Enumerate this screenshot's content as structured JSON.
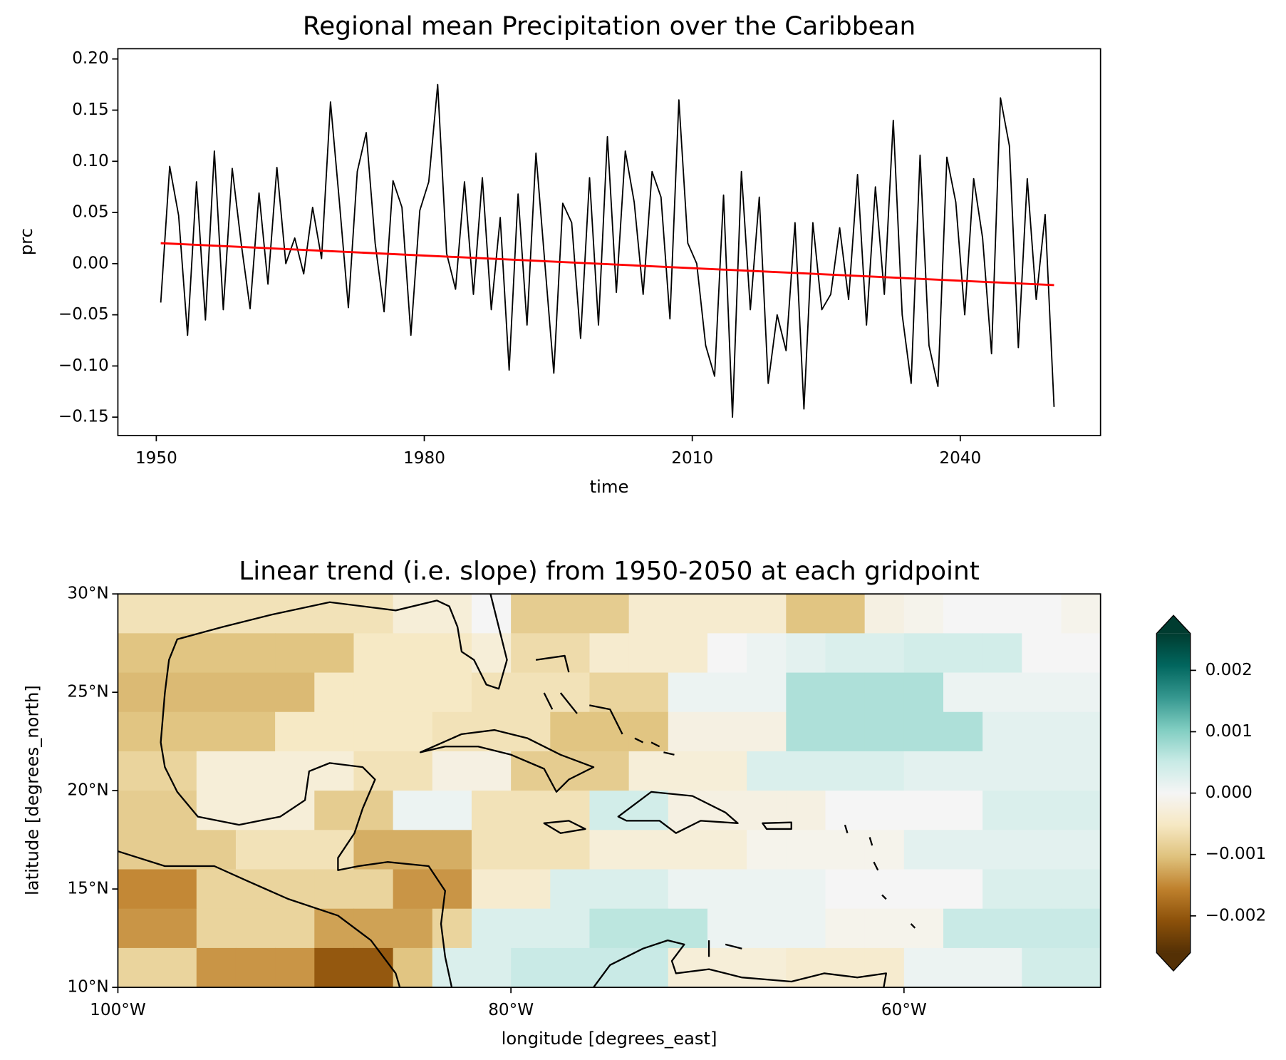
{
  "chart_data": [
    {
      "type": "line",
      "title": "Regional mean Precipitation over the Caribbean",
      "xlabel": "time",
      "ylabel": "prc",
      "xlim": [
        1945.7,
        2055.7
      ],
      "ylim": [
        -0.168,
        0.21
      ],
      "xticks": [
        1950,
        1980,
        2010,
        2040
      ],
      "yticks": [
        {
          "value": -0.15,
          "label": "−0.15"
        },
        {
          "value": -0.1,
          "label": "−0.10"
        },
        {
          "value": -0.05,
          "label": "−0.05"
        },
        {
          "value": 0,
          "label": "0.00"
        },
        {
          "value": 0.05,
          "label": "0.05"
        },
        {
          "value": 0.1,
          "label": "0.10"
        },
        {
          "value": 0.15,
          "label": "0.15"
        },
        {
          "value": 0.2,
          "label": "0.20"
        }
      ],
      "x": [
        1950.5,
        1951.5,
        1952.5,
        1953.5,
        1954.5,
        1955.5,
        1956.5,
        1957.5,
        1958.5,
        1959.5,
        1960.5,
        1961.5,
        1962.5,
        1963.5,
        1964.5,
        1965.5,
        1966.5,
        1967.5,
        1968.5,
        1969.5,
        1970.5,
        1971.5,
        1972.5,
        1973.5,
        1974.5,
        1975.5,
        1976.5,
        1977.5,
        1978.5,
        1979.5,
        1980.5,
        1981.5,
        1982.5,
        1983.5,
        1984.5,
        1985.5,
        1986.5,
        1987.5,
        1988.5,
        1989.5,
        1990.5,
        1991.5,
        1992.5,
        1993.5,
        1994.5,
        1995.5,
        1996.5,
        1997.5,
        1998.5,
        1999.5,
        2000.5,
        2001.5,
        2002.5,
        2003.5,
        2004.5,
        2005.5,
        2006.5,
        2007.5,
        2008.5,
        2009.5,
        2010.5,
        2011.5,
        2012.5,
        2013.5,
        2014.5,
        2015.5,
        2016.5,
        2017.5,
        2018.5,
        2019.5,
        2020.5,
        2021.5,
        2022.5,
        2023.5,
        2024.5,
        2025.5,
        2026.5,
        2027.5,
        2028.5,
        2029.5,
        2030.5,
        2031.5,
        2032.5,
        2033.5,
        2034.5,
        2035.5,
        2036.5,
        2037.5,
        2038.5,
        2039.5,
        2040.5,
        2041.5,
        2042.5,
        2043.5,
        2044.5,
        2045.5,
        2046.5,
        2047.5,
        2048.5,
        2049.5,
        2050.5
      ],
      "series": [
        {
          "color": "#000000",
          "values": [
            -0.038,
            0.095,
            0.047,
            -0.07,
            0.08,
            -0.055,
            0.11,
            -0.045,
            0.093,
            0.02,
            -0.044,
            0.069,
            -0.02,
            0.094,
            0.0,
            0.025,
            -0.01,
            0.055,
            0.005,
            0.158,
            0.06,
            -0.043,
            0.09,
            0.128,
            0.02,
            -0.047,
            0.081,
            0.055,
            -0.07,
            0.052,
            0.08,
            0.175,
            0.01,
            -0.025,
            0.08,
            -0.03,
            0.084,
            -0.045,
            0.045,
            -0.104,
            0.068,
            -0.06,
            0.108,
            0.0,
            -0.107,
            0.059,
            0.04,
            -0.073,
            0.084,
            -0.06,
            0.124,
            -0.028,
            0.11,
            0.06,
            -0.03,
            0.09,
            0.065,
            -0.054,
            0.16,
            0.02,
            0.0,
            -0.08,
            -0.11,
            0.067,
            -0.15,
            0.09,
            -0.045,
            0.065,
            -0.117,
            -0.05,
            -0.085,
            0.04,
            -0.142,
            0.04,
            -0.045,
            -0.03,
            0.035,
            -0.035,
            0.087,
            -0.06,
            0.075,
            -0.03,
            0.14,
            -0.05,
            -0.117,
            0.106,
            -0.08,
            -0.12,
            0.104,
            0.06,
            -0.05,
            0.083,
            0.025,
            -0.088,
            0.162,
            0.115,
            -0.082,
            0.083,
            -0.035,
            0.048,
            -0.14
          ]
        },
        {
          "color": "#ff0000",
          "x": [
            1950.5,
            2050.5
          ],
          "values": [
            0.02,
            -0.021
          ]
        }
      ]
    },
    {
      "type": "heatmap",
      "title": "Linear trend (i.e. slope) from 1950-2050 at each gridpoint",
      "xlabel": "longitude [degrees_east]",
      "ylabel": "latitude [degrees_north]",
      "cmap": "BrBG",
      "xlim": [
        -100,
        -50
      ],
      "ylim": [
        10,
        30
      ],
      "xticks": [
        {
          "value": -100,
          "label": "100°W"
        },
        {
          "value": -80,
          "label": "80°W"
        },
        {
          "value": -60,
          "label": "60°W"
        }
      ],
      "yticks": [
        {
          "value": 10,
          "label": "10°N"
        },
        {
          "value": 15,
          "label": "15°N"
        },
        {
          "value": 20,
          "label": "20°N"
        },
        {
          "value": 25,
          "label": "25°N"
        },
        {
          "value": 30,
          "label": "30°N"
        }
      ],
      "lon": [
        -99,
        -97,
        -95,
        -93,
        -91,
        -89,
        -87,
        -85,
        -83,
        -81,
        -79,
        -77,
        -75,
        -73,
        -71,
        -69,
        -67,
        -65,
        -63,
        -61,
        -59,
        -57,
        -55,
        -53,
        -51
      ],
      "lat": [
        29,
        27,
        25,
        23,
        21,
        19,
        17,
        15,
        13,
        11
      ],
      "z": [
        [
          -0.0006,
          -0.0006,
          -0.0006,
          -0.0006,
          -0.0006,
          -0.0006,
          -0.0006,
          -0.0003,
          -0.0003,
          0,
          -0.0009,
          -0.0009,
          -0.0009,
          -0.0004,
          -0.0004,
          -0.0004,
          -0.0004,
          -0.001,
          -0.001,
          -0.0002,
          -0.0001,
          0,
          0,
          0,
          -0.0001
        ],
        [
          -0.001,
          -0.001,
          -0.001,
          -0.001,
          -0.001,
          -0.001,
          -0.0005,
          -0.0005,
          -0.0005,
          -0.0003,
          -0.0007,
          -0.0007,
          -0.0004,
          -0.0004,
          -0.0004,
          0,
          0.0001,
          0.0002,
          0.0003,
          0.0003,
          0.0004,
          0.0004,
          0.0004,
          0,
          0
        ],
        [
          -0.0011,
          -0.0011,
          -0.0011,
          -0.0011,
          -0.0011,
          -0.0005,
          -0.0005,
          -0.0005,
          -0.0005,
          -0.0006,
          -0.0006,
          -0.0006,
          -0.0008,
          -0.0008,
          0.0001,
          0.0001,
          0.0001,
          0.0007,
          0.0007,
          0.0007,
          0.0007,
          0.0001,
          0.0001,
          0.0001,
          0.0001
        ],
        [
          -0.001,
          -0.001,
          -0.001,
          -0.001,
          -0.0005,
          -0.0005,
          -0.0005,
          -0.0005,
          -0.0006,
          -0.0006,
          -0.0006,
          -0.001,
          -0.001,
          -0.001,
          -0.0002,
          -0.0002,
          -0.0002,
          0.0007,
          0.0007,
          0.0007,
          0.0007,
          0.0007,
          0.0002,
          0.0002,
          0.0002
        ],
        [
          -0.0008,
          -0.0008,
          -0.0003,
          -0.0003,
          -0.0003,
          -0.0003,
          -0.0006,
          -0.0006,
          -0.0002,
          -0.0002,
          -0.0009,
          -0.0009,
          -0.0009,
          -0.0003,
          -0.0003,
          -0.0003,
          0.0003,
          0.0003,
          0.0003,
          0.0003,
          0.0002,
          0.0002,
          0.0002,
          0.0002,
          0.0002
        ],
        [
          -0.0009,
          -0.0009,
          -0.0003,
          -0.0003,
          -0.0003,
          -0.0009,
          -0.0009,
          0.0001,
          0.0001,
          -0.0006,
          -0.0006,
          -0.0006,
          0.0004,
          0.0004,
          -0.0002,
          -0.0002,
          -0.0002,
          -0.0002,
          0,
          0,
          0,
          0,
          0.0003,
          0.0003,
          0.0003
        ],
        [
          -0.0009,
          -0.0009,
          -0.0009,
          -0.0006,
          -0.0006,
          -0.0006,
          -0.0012,
          -0.0012,
          -0.0012,
          -0.0006,
          -0.0006,
          -0.0006,
          -0.0003,
          -0.0003,
          -0.0003,
          -0.0003,
          -0.0001,
          -0.0001,
          -0.0001,
          -0.0001,
          0.0002,
          0.0002,
          0.0002,
          0.0002,
          0.0002
        ],
        [
          -0.0015,
          -0.0015,
          -0.0008,
          -0.0008,
          -0.0008,
          -0.0008,
          -0.0008,
          -0.0014,
          -0.0014,
          -0.0004,
          -0.0004,
          0.0003,
          0.0003,
          0.0003,
          0.0001,
          0.0001,
          0.0001,
          0.0001,
          0,
          0,
          0,
          0,
          0.0003,
          0.0003,
          0.0003
        ],
        [
          -0.0014,
          -0.0014,
          -0.0008,
          -0.0008,
          -0.0008,
          -0.0013,
          -0.0013,
          -0.0013,
          -0.0008,
          0.0003,
          0.0003,
          0.0003,
          0.0006,
          0.0006,
          0.0006,
          0.0001,
          0.0001,
          0.0001,
          -0.0001,
          -0.0001,
          -0.0001,
          0.0005,
          0.0005,
          0.0005,
          0.0005
        ],
        [
          -0.0008,
          -0.0008,
          -0.0014,
          -0.0014,
          -0.0014,
          -0.002,
          -0.002,
          -0.001,
          0.0003,
          0.0003,
          0.0005,
          0.0005,
          0.0005,
          0.0005,
          -0.0003,
          -0.0003,
          -0.0003,
          -0.0004,
          -0.0004,
          -0.0004,
          0.0001,
          0.0001,
          0.0001,
          0.0004,
          0.0004
        ]
      ],
      "colorbar": {
        "lim": [
          -0.0026,
          0.0026
        ],
        "ticks": [
          {
            "value": -0.002,
            "label": "−0.002"
          },
          {
            "value": -0.001,
            "label": "−0.001"
          },
          {
            "value": 0,
            "label": "0.000"
          },
          0.001,
          0.002
        ]
      }
    }
  ]
}
